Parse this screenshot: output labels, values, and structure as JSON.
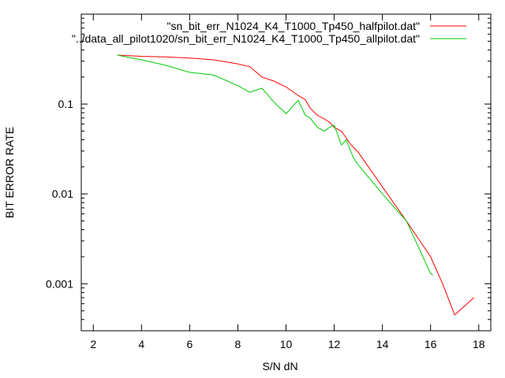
{
  "chart_data": {
    "type": "line",
    "title": "",
    "xlabel": "S/N dN",
    "ylabel": "BIT ERROR RATE",
    "xlim": [
      1.5,
      18.5
    ],
    "ylim": [
      0.0003,
      1
    ],
    "yscale": "log",
    "grid": false,
    "legend_position": "top-right",
    "x_ticks": [
      2,
      4,
      6,
      8,
      10,
      12,
      14,
      16,
      18
    ],
    "x_tick_labels": [
      "2",
      "4",
      "6",
      "8",
      "10",
      "12",
      "14",
      "16",
      "18"
    ],
    "y_ticks": [
      0.001,
      0.01,
      0.1
    ],
    "y_tick_labels": [
      "0.001",
      "0.01",
      "0.1"
    ],
    "series": [
      {
        "name": "\"sn_bit_err_N1024_K4_T1000_Tp450_halfpilot.dat\"",
        "color": "#ff0000",
        "x": [
          3.0,
          4.0,
          5.0,
          6.0,
          7.0,
          8.0,
          8.5,
          9.0,
          9.5,
          10.0,
          10.5,
          10.8,
          11.0,
          11.3,
          11.6,
          11.8,
          12.0,
          12.3,
          12.7,
          13.0,
          14.0,
          15.0,
          16.0,
          16.5,
          17.0,
          17.8
        ],
        "y": [
          0.35,
          0.34,
          0.335,
          0.325,
          0.31,
          0.28,
          0.26,
          0.2,
          0.18,
          0.155,
          0.125,
          0.112,
          0.09,
          0.075,
          0.068,
          0.063,
          0.055,
          0.05,
          0.035,
          0.029,
          0.012,
          0.005,
          0.002,
          0.001,
          0.00045,
          0.0007
        ]
      },
      {
        "name": "\"../data_all_pilot1020/sn_bit_err_N1024_K4_T1000_Tp450_allpilot.dat\"",
        "color": "#00cc00",
        "x": [
          3.0,
          4.0,
          5.0,
          6.0,
          7.0,
          8.0,
          8.5,
          9.0,
          9.5,
          10.0,
          10.5,
          10.8,
          11.0,
          11.3,
          11.6,
          11.8,
          12.0,
          12.3,
          12.5,
          12.8,
          13.0,
          14.0,
          15.0,
          16.0,
          16.1
        ],
        "y": [
          0.35,
          0.31,
          0.27,
          0.225,
          0.21,
          0.16,
          0.135,
          0.15,
          0.105,
          0.078,
          0.11,
          0.075,
          0.07,
          0.055,
          0.05,
          0.055,
          0.058,
          0.035,
          0.04,
          0.025,
          0.021,
          0.01,
          0.005,
          0.0013,
          0.00125
        ]
      }
    ]
  }
}
